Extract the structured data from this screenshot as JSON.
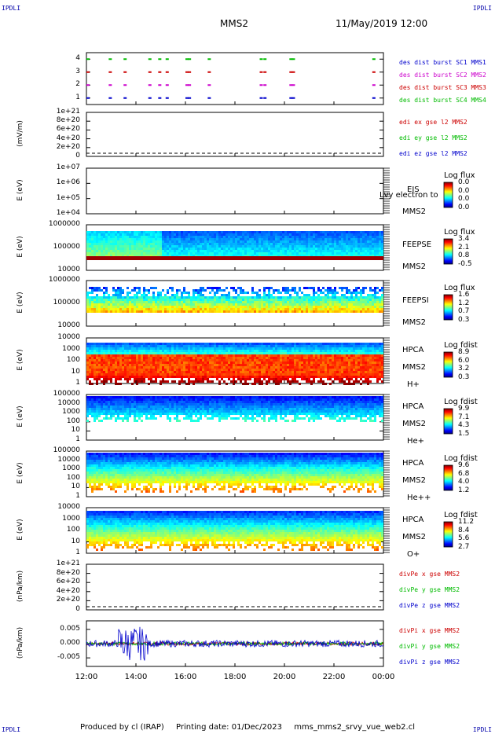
{
  "header": {
    "corner_label": "IPDLI",
    "spacecraft": "MMS2",
    "datetime": "11/May/2019 12:00"
  },
  "footer": {
    "produced_by": "Produced by cl (IRAP)",
    "printing_date": "Printing date: 01/Dec/2023",
    "filename": "mms_mms2_srvy_vue_web2.cl"
  },
  "chart_data": [
    {
      "type": "scatter",
      "id": "burst",
      "ylim": [
        0.5,
        4.5
      ],
      "yticks": [
        "1",
        "2",
        "3",
        "4"
      ],
      "ylabel": "",
      "series": [
        {
          "name": "des dist burst SC1 MMS1",
          "color": "#0000cc",
          "y": 1
        },
        {
          "name": "des dist burst SC2 MMS2",
          "color": "#cc00cc",
          "y": 2
        },
        {
          "name": "des dist burst SC3 MMS3",
          "color": "#cc0000",
          "y": 3
        },
        {
          "name": "des dist burst SC4 MMS4",
          "color": "#00bb00",
          "y": 4
        }
      ],
      "bursts_hours": [
        12.0,
        12.9,
        13.5,
        14.5,
        14.9,
        15.2,
        16.0,
        16.1,
        16.9,
        19.0,
        19.15,
        20.2,
        20.3,
        23.55
      ]
    },
    {
      "type": "line",
      "id": "edi",
      "ylabel": "(mV/m)",
      "yticks": [
        "1e+21",
        "8e+20",
        "6e+20",
        "4e+20",
        "2e+20",
        "0"
      ],
      "series": [
        {
          "name": "edi ex gse l2 MMS2",
          "color": "#cc0000"
        },
        {
          "name": "edi ey gse l2 MMS2",
          "color": "#00bb00"
        },
        {
          "name": "edi ez gse l2 MMS2",
          "color": "#0000cc"
        }
      ]
    },
    {
      "type": "heatmap",
      "id": "eis",
      "ylabel": "E (eV)",
      "yticks": [
        "1e+07",
        "1e+06",
        "1e+05",
        "1e+04"
      ],
      "instrument": [
        "EIS",
        "MMS2"
      ],
      "overlay": "Lvy electron to",
      "cb_title": "Log flux",
      "cb_values": [
        "0.0",
        "0.0",
        "0.0",
        "0.0"
      ]
    },
    {
      "type": "heatmap",
      "id": "feepse",
      "ylabel": "E (eV)",
      "yticks": [
        "1000000",
        "100000",
        "10000"
      ],
      "instrument": [
        "FEEPSE",
        "MMS2"
      ],
      "cb_title": "Log flux",
      "cb_values": [
        "3.4",
        "2.1",
        "0.8",
        "-0.5"
      ]
    },
    {
      "type": "heatmap",
      "id": "feepsi",
      "ylabel": "E (eV)",
      "yticks": [
        "1000000",
        "100000",
        "10000"
      ],
      "instrument": [
        "FEEPSI",
        "MMS2"
      ],
      "cb_title": "Log flux",
      "cb_values": [
        "1.6",
        "1.2",
        "0.7",
        "0.3"
      ]
    },
    {
      "type": "heatmap",
      "id": "hpca_h",
      "ylabel": "E (eV)",
      "yticks": [
        "10000",
        "1000",
        "100",
        "10",
        "1"
      ],
      "instrument": [
        "HPCA",
        "MMS2",
        "H+"
      ],
      "cb_title": "Log fdist",
      "cb_values": [
        "8.9",
        "6.0",
        "3.2",
        "0.3"
      ]
    },
    {
      "type": "heatmap",
      "id": "hpca_he",
      "ylabel": "E (eV)",
      "yticks": [
        "100000",
        "10000",
        "1000",
        "100",
        "10",
        "1"
      ],
      "instrument": [
        "HPCA",
        "MMS2",
        "He+"
      ],
      "cb_title": "Log fdist",
      "cb_values": [
        "9.9",
        "7.1",
        "4.3",
        "1.5"
      ]
    },
    {
      "type": "heatmap",
      "id": "hpca_hepp",
      "ylabel": "E (eV)",
      "yticks": [
        "100000",
        "10000",
        "1000",
        "100",
        "10",
        "1"
      ],
      "instrument": [
        "HPCA",
        "MMS2",
        "He++"
      ],
      "cb_title": "Log fdist",
      "cb_values": [
        "9.6",
        "6.8",
        "4.0",
        "1.2"
      ]
    },
    {
      "type": "heatmap",
      "id": "hpca_o",
      "ylabel": "E (eV)",
      "yticks": [
        "10000",
        "1000",
        "100",
        "10",
        "1"
      ],
      "instrument": [
        "HPCA",
        "MMS2",
        "O+"
      ],
      "cb_title": "Log fdist",
      "cb_values": [
        "11.2",
        "8.4",
        "5.6",
        "2.7"
      ]
    },
    {
      "type": "line",
      "id": "divpe",
      "ylabel": "(nPa/km)",
      "yticks": [
        "1e+21",
        "8e+20",
        "6e+20",
        "4e+20",
        "2e+20",
        "0"
      ],
      "series": [
        {
          "name": "divPe x gse MMS2",
          "color": "#cc0000"
        },
        {
          "name": "divPe y gse MMS2",
          "color": "#00bb00"
        },
        {
          "name": "divPe z gse MMS2",
          "color": "#0000cc"
        }
      ]
    },
    {
      "type": "line",
      "id": "divpi",
      "ylabel": "(nPa/km)",
      "yticks": [
        "0.005",
        "0.000",
        "-0.005"
      ],
      "ylim": [
        -0.008,
        0.008
      ],
      "series": [
        {
          "name": "divPi x gse MMS2",
          "color": "#cc0000"
        },
        {
          "name": "divPi y gse MMS2",
          "color": "#00bb00"
        },
        {
          "name": "divPi z gse MMS2",
          "color": "#0000cc"
        }
      ]
    }
  ],
  "xaxis": {
    "ticks": [
      "12:00",
      "14:00",
      "16:00",
      "18:00",
      "20:00",
      "22:00",
      "00:00"
    ],
    "range_hours": [
      12,
      24
    ]
  }
}
